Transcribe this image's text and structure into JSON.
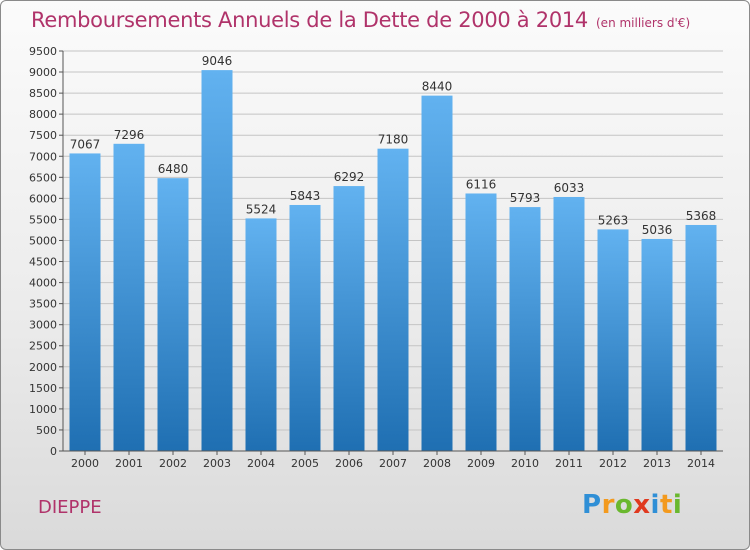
{
  "title": "Remboursements Annuels de la Dette de 2000 à 2014",
  "unit": "(en milliers d'€)",
  "commune": "DIEPPE",
  "logo": {
    "text": "Proxiti",
    "letters": [
      {
        "ch": "P",
        "color": "#2f8fd6"
      },
      {
        "ch": "r",
        "color": "#f39a1e"
      },
      {
        "ch": "o",
        "color": "#6ab82e"
      },
      {
        "ch": "x",
        "color": "#e0391f"
      },
      {
        "ch": "i",
        "color": "#2f8fd6"
      },
      {
        "ch": "t",
        "color": "#f39a1e"
      },
      {
        "ch": "i",
        "color": "#6ab82e"
      }
    ]
  },
  "colors": {
    "title": "#b0336a",
    "bar_top": "#62b2f0",
    "bar_bottom": "#1f6fb2",
    "grid": "#c4c4c4"
  },
  "chart_data": {
    "type": "bar",
    "title": "Remboursements Annuels de la Dette de 2000 à 2014",
    "ylabel": "",
    "xlabel": "",
    "categories": [
      "2000",
      "2001",
      "2002",
      "2003",
      "2004",
      "2005",
      "2006",
      "2007",
      "2008",
      "2009",
      "2010",
      "2011",
      "2012",
      "2013",
      "2014"
    ],
    "values": [
      7067,
      7296,
      6480,
      9046,
      5524,
      5843,
      6292,
      7180,
      8440,
      6116,
      5793,
      6033,
      5263,
      5036,
      5368
    ],
    "ylim": [
      0,
      9500
    ],
    "ytick_step": 500,
    "grid": true
  }
}
